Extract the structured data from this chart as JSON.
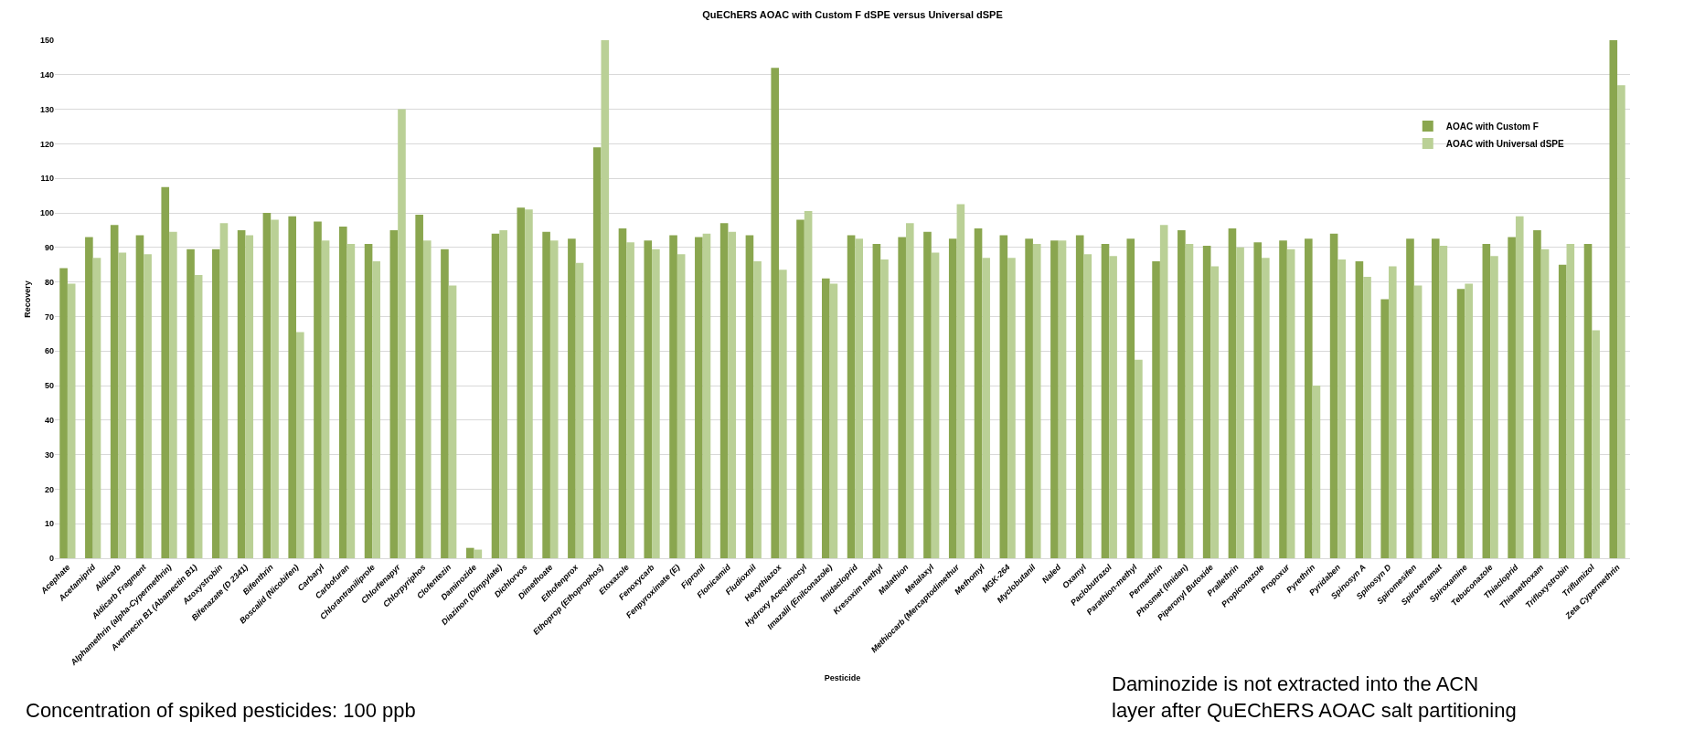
{
  "chart_data": {
    "type": "bar",
    "title": "QuEChERS AOAC with Custom F dSPE versus Universal dSPE",
    "xlabel": "Pesticide",
    "ylabel": "Recovery",
    "categories": [
      "Acephate",
      "Acetamiprid",
      "Aldicarb",
      "Aldicarb Fragment",
      "Alphamethrin (alpha-Cypermethrin)",
      "Avermecin B1 (Abamectin B1)",
      "Azoxystrobin",
      "Bifenazate (D 2341)",
      "Bifenthrin",
      "Boscalid (Nicobifen)",
      "Carbaryl",
      "Carbofuran",
      "Chlorantraniliprole",
      "Chlorfenapyr",
      "Chlorpyriphos",
      "Clofentezin",
      "Daminozide",
      "Diazinon (Dimpylate)",
      "Dichlorvos",
      "Dimethoate",
      "Ethofenprox",
      "Ethoprop (Ethoprophos)",
      "Etoxazole",
      "Fenoxycarb",
      "Fenpyroximate (E)",
      "Fipronil",
      "Flonicamid",
      "Fludioxnil",
      "Hexythiazox",
      "Hydroxy Acequinocyl",
      "Imazalil (Enilconazole)",
      "Imidacloprid",
      "Kresoxim methyl",
      "Malathion",
      "Metalaxyl",
      "Methiocarb (Mercaptodimethur",
      "Methomyl",
      "MGK-264",
      "Myclobutanil",
      "Naled",
      "Oxamyl",
      "Paclobutrazol",
      "Parathion-methyl",
      "Permethrin",
      "Phosmet (Imidan)",
      "Piperonyl Butoxide",
      "Prallethrin",
      "Propiconazole",
      "Propoxur",
      "Pyrethrin",
      "Pyridaben",
      "Spinosyn A",
      "Spinosyn D",
      "Spiromesifen",
      "Spirotetramat",
      "Spiroxamine",
      "Tebuconazole",
      "Thiacloprid",
      "Thiamethoxam",
      "Trifloxystrobin",
      "Triflumizol",
      "Zeta Cypermethrin"
    ],
    "series": [
      {
        "name": "AOAC with Custom F",
        "color": "#8aa64f",
        "values": [
          84,
          93,
          96.5,
          93.5,
          107.5,
          89.5,
          89.5,
          95,
          100,
          99,
          97.5,
          96,
          91,
          95,
          99.5,
          89.5,
          3,
          94,
          101.5,
          94.5,
          92.5,
          119,
          95.5,
          92,
          93.5,
          93,
          97,
          93.5,
          142,
          98,
          81,
          93.5,
          91,
          93,
          94.5,
          92.5,
          95.5,
          93.5,
          92.5,
          92,
          93.5,
          91,
          92.5,
          86,
          95,
          90.5,
          95.5,
          91.5,
          92,
          92.5,
          94,
          86,
          75,
          92.5,
          92.5,
          78,
          91,
          93,
          95,
          85,
          91,
          150
        ]
      },
      {
        "name": "AOAC with Universal dSPE",
        "color": "#bad096",
        "values": [
          79.5,
          87,
          88.5,
          88,
          94.5,
          82,
          97,
          93.5,
          98,
          65.5,
          92,
          91,
          86,
          130,
          92,
          79,
          2.5,
          95,
          101,
          92,
          85.5,
          150,
          91.5,
          89.5,
          88,
          94,
          94.5,
          86,
          83.5,
          100.5,
          79.5,
          92.5,
          86.5,
          97,
          88.5,
          102.5,
          87,
          87,
          91,
          92,
          88,
          87.5,
          57.5,
          96.5,
          91,
          84.5,
          90,
          87,
          89.5,
          50,
          86.5,
          81.5,
          84.5,
          79,
          90.5,
          79.5,
          87.5,
          99,
          89.5,
          91,
          66,
          137
        ]
      }
    ],
    "ylim": [
      0,
      150
    ],
    "yticks": [
      0,
      10,
      20,
      30,
      40,
      50,
      60,
      70,
      80,
      90,
      100,
      110,
      120,
      130,
      140,
      150
    ],
    "grid": "y",
    "legend": "top right",
    "annotations": [
      "Concentration of spiked pesticides: 100 ppb",
      "Daminozide is not extracted into the ACN layer after QuEChERS AOAC salt partitioning"
    ]
  }
}
